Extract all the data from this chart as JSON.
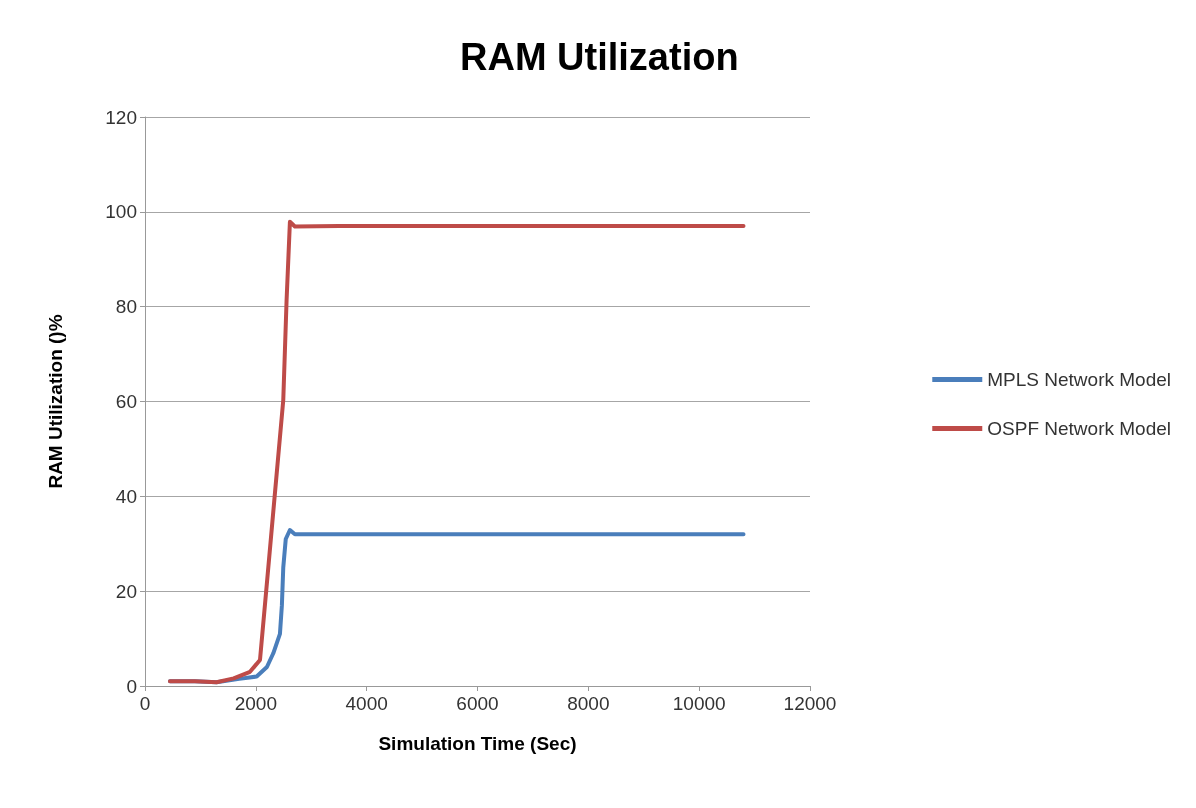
{
  "chart_data": {
    "type": "line",
    "title": "RAM Utilization",
    "xlabel": "Simulation Time (Sec)",
    "ylabel": "RAM Utilization ()%",
    "series": [
      {
        "name": "MPLS Network Model",
        "color": "#4a7ebb",
        "x": [
          450,
          900,
          1290,
          1700,
          2015,
          2200,
          2315,
          2435,
          2470,
          2495,
          2540,
          2615,
          2705,
          3500,
          6000,
          10800
        ],
        "values": [
          1,
          1,
          0.8,
          1.5,
          2,
          4,
          6.9,
          11,
          17,
          25,
          31,
          32.9,
          32,
          32,
          32,
          32
        ]
      },
      {
        "name": "OSPF Network Model",
        "color": "#be4b48",
        "x": [
          450,
          900,
          1290,
          1600,
          1895,
          2075,
          2225,
          2345,
          2495,
          2555,
          2615,
          2705,
          3500,
          6000,
          10800
        ],
        "values": [
          1,
          1,
          0.8,
          1.6,
          3,
          5.5,
          25,
          40.7,
          60.3,
          81.4,
          97.9,
          96.9,
          97,
          97,
          97
        ]
      }
    ],
    "xlim": [
      0,
      12000
    ],
    "xticks": [
      0,
      2000,
      4000,
      6000,
      8000,
      10000,
      12000
    ],
    "ylim": [
      0,
      120
    ],
    "yticks": [
      0,
      20,
      40,
      60,
      80,
      100,
      120
    ],
    "grid": "y",
    "legend": "right",
    "marker": "none",
    "line_style": "solid"
  }
}
